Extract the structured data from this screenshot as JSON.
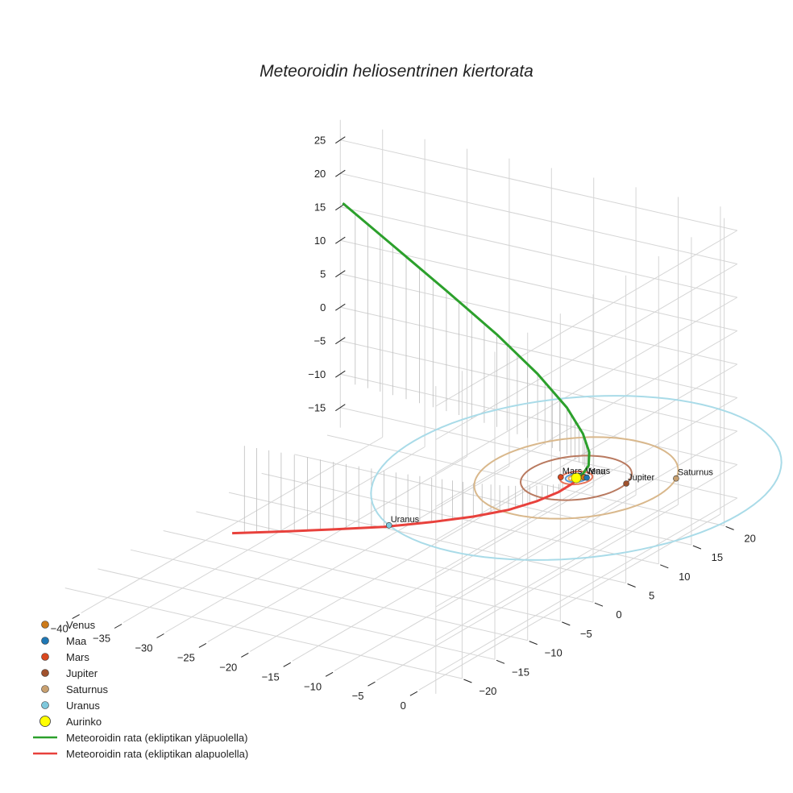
{
  "chart_data": {
    "type": "3d-line",
    "title": "Meteoroidin heliosentrinen kiertorata",
    "axes": {
      "x": {
        "range": [
          -45,
          2
        ],
        "ticks": [
          -40,
          -35,
          -30,
          -25,
          -20,
          -15,
          -10,
          -5,
          0
        ],
        "tick_labels": [
          "−40",
          "−35",
          "−30",
          "−25",
          "−20",
          "−15",
          "−10",
          "−5",
          "0"
        ]
      },
      "y": {
        "range": [
          -24,
          22
        ],
        "ticks": [
          -20,
          -15,
          -10,
          -5,
          0,
          5,
          10,
          15,
          20
        ],
        "tick_labels": [
          "−20",
          "−15",
          "−10",
          "−5",
          "0",
          "5",
          "10",
          "15",
          "20"
        ]
      },
      "z": {
        "range": [
          -18,
          28
        ],
        "ticks": [
          -15,
          -10,
          -5,
          0,
          5,
          10,
          15,
          20,
          25
        ],
        "tick_labels": [
          "−15",
          "−10",
          "−5",
          "0",
          "5",
          "10",
          "15",
          "20",
          "25"
        ]
      }
    },
    "sun": {
      "name": "Aurinko",
      "color": "#ffff00",
      "x": 0,
      "y": 0,
      "z": 0
    },
    "planets": [
      {
        "name": "Venus",
        "color": "#cc7a1a",
        "orbit_color": "#e8a860",
        "a": 0.72,
        "angle": 40
      },
      {
        "name": "Maa",
        "color": "#1f77b4",
        "orbit_color": "#5b9bd5",
        "a": 1.0,
        "angle": 30
      },
      {
        "name": "Mars",
        "color": "#d9481f",
        "orbit_color": "#e8765a",
        "a": 1.52,
        "angle": 200
      },
      {
        "name": "Jupiter",
        "color": "#a0522d",
        "orbit_color": "#b97a60",
        "a": 5.2,
        "angle": 12
      },
      {
        "name": "Saturnus",
        "color": "#c8a070",
        "orbit_color": "#d9b88c",
        "a": 9.54,
        "angle": 26
      },
      {
        "name": "Uranus",
        "color": "#7fc8dc",
        "orbit_color": "#a9dbe8",
        "a": 19.2,
        "angle": -118
      }
    ],
    "series": [
      {
        "name": "Meteoroidin rata (ekliptikan yläpuolella)",
        "color": "#2ca02c",
        "points": [
          [
            0.4,
            -0.6,
            0.3
          ],
          [
            0.9,
            -0.2,
            0.9
          ],
          [
            1.0,
            0.6,
            1.8
          ],
          [
            0.3,
            1.6,
            3.0
          ],
          [
            -1.3,
            2.7,
            4.7
          ],
          [
            -4.2,
            4.0,
            7.0
          ],
          [
            -8.6,
            5.2,
            10.1
          ],
          [
            -14.2,
            6.2,
            13.8
          ],
          [
            -20.8,
            7.0,
            18.0
          ],
          [
            -27.7,
            7.7,
            22.4
          ],
          [
            -34.0,
            8.2,
            26.6
          ]
        ]
      },
      {
        "name": "Meteoroidin rata (ekliptikan alapuolella)",
        "color": "#e8413c",
        "points": [
          [
            0.3,
            -0.7,
            -0.2
          ],
          [
            -0.6,
            -1.9,
            -1.2
          ],
          [
            -2.2,
            -3.2,
            -2.3
          ],
          [
            -4.6,
            -4.4,
            -3.6
          ],
          [
            -8.0,
            -5.4,
            -5.0
          ],
          [
            -12.3,
            -6.2,
            -6.6
          ],
          [
            -17.4,
            -6.9,
            -8.4
          ],
          [
            -23.0,
            -7.4,
            -10.1
          ],
          [
            -28.8,
            -7.9,
            -11.8
          ],
          [
            -34.3,
            -8.3,
            -13.4
          ]
        ]
      }
    ],
    "legend": {
      "position": "bottom-left",
      "entries": [
        {
          "label": "Venus",
          "kind": "marker",
          "color": "#cc7a1a"
        },
        {
          "label": "Maa",
          "kind": "marker",
          "color": "#1f77b4"
        },
        {
          "label": "Mars",
          "kind": "marker",
          "color": "#d9481f"
        },
        {
          "label": "Jupiter",
          "kind": "marker",
          "color": "#a0522d"
        },
        {
          "label": "Saturnus",
          "kind": "marker",
          "color": "#c8a070"
        },
        {
          "label": "Uranus",
          "kind": "marker",
          "color": "#7fc8dc"
        },
        {
          "label": "Aurinko",
          "kind": "sun",
          "color": "#ffff00"
        },
        {
          "label": "Meteoroidin rata (ekliptikan yläpuolella)",
          "kind": "line",
          "color": "#2ca02c"
        },
        {
          "label": "Meteoroidin rata (ekliptikan alapuolella)",
          "kind": "line",
          "color": "#e8413c"
        }
      ]
    }
  }
}
